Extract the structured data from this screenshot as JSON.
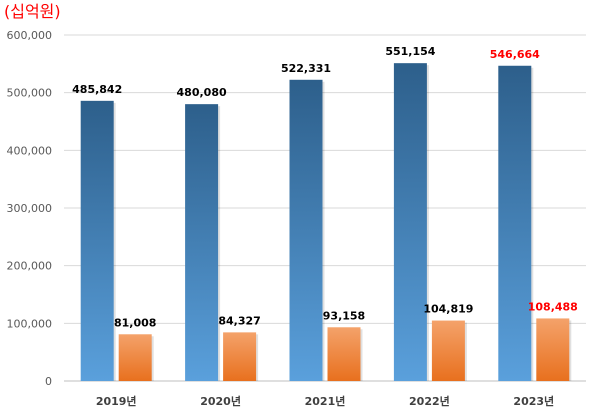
{
  "chart_data": {
    "type": "bar",
    "unit_label": "(십억원)",
    "categories": [
      "2019년",
      "2020년",
      "2021년",
      "2022년",
      "2023년"
    ],
    "ylim": [
      0,
      600000
    ],
    "yticks": [
      "0",
      "100,000",
      "200,000",
      "300,000",
      "400,000",
      "500,000",
      "600,000"
    ],
    "grid": true,
    "series": [
      {
        "values": [
          485842,
          480080,
          522331,
          551154,
          546664
        ],
        "labels": [
          "485,842",
          "480,080",
          "522,331",
          "551,154",
          "546,664"
        ],
        "color_top": "#2d5f8b",
        "color_bottom": "#5aa0dc"
      },
      {
        "values": [
          81008,
          84327,
          93158,
          104819,
          108488
        ],
        "labels": [
          "81,008",
          "84,327",
          "93,158",
          "104,819",
          "108,488"
        ],
        "color_top": "#f4a26a",
        "color_bottom": "#e8701e"
      }
    ],
    "label_color_default": "#000000",
    "label_color_highlight": "#ff0000",
    "highlight_category_index": 4,
    "unit_color": "#ff0000"
  }
}
